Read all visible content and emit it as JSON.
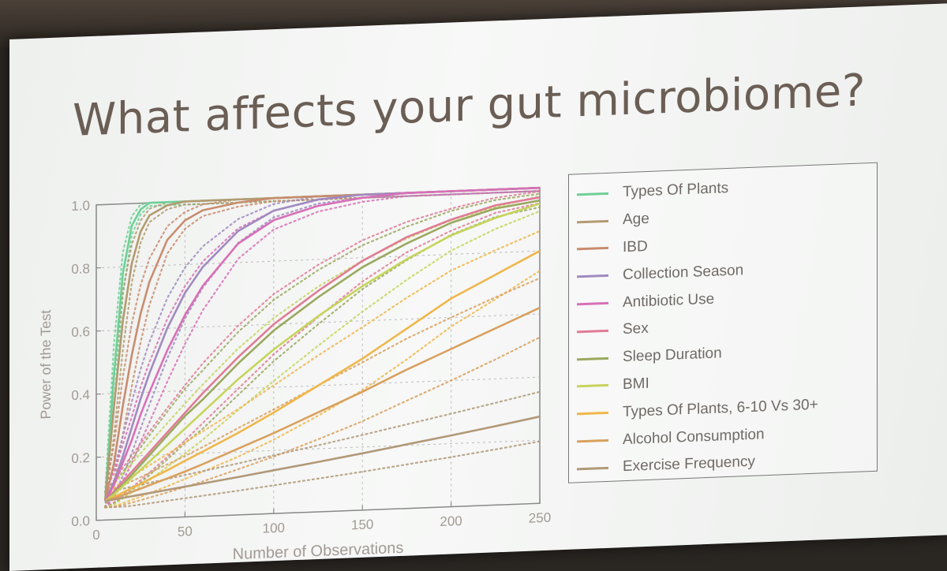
{
  "slide": {
    "title": "What affects your gut microbiome?"
  },
  "chart_data": {
    "type": "line",
    "xlabel": "Number of Observations",
    "ylabel": "Power of the Test",
    "xlim": [
      0,
      250
    ],
    "ylim": [
      0.0,
      1.0
    ],
    "xticks": [
      "0",
      "50",
      "100",
      "150",
      "200",
      "250"
    ],
    "yticks": [
      "0.0",
      "0.2",
      "0.4",
      "0.6",
      "0.8",
      "1.0"
    ],
    "grid": true,
    "legend_position": "right",
    "x": [
      5,
      10,
      15,
      20,
      25,
      30,
      40,
      50,
      60,
      80,
      100,
      125,
      150,
      175,
      200,
      225,
      250
    ],
    "series": [
      {
        "name": "Types Of Plants",
        "color": "#6fcf97",
        "values": [
          0.06,
          0.46,
          0.78,
          0.93,
          0.98,
          1.0,
          1.0,
          1.0,
          1.0,
          1.0,
          1.0,
          1.0,
          1.0,
          1.0,
          1.0,
          1.0,
          1.0
        ]
      },
      {
        "name": "Age",
        "color": "#b39a70",
        "values": [
          0.06,
          0.36,
          0.63,
          0.81,
          0.91,
          0.96,
          0.99,
          1.0,
          1.0,
          1.0,
          1.0,
          1.0,
          1.0,
          1.0,
          1.0,
          1.0,
          1.0
        ]
      },
      {
        "name": "IBD",
        "color": "#c98c6d",
        "values": [
          0.06,
          0.18,
          0.36,
          0.52,
          0.65,
          0.75,
          0.88,
          0.94,
          0.97,
          0.99,
          1.0,
          1.0,
          1.0,
          1.0,
          1.0,
          1.0,
          1.0
        ]
      },
      {
        "name": "Collection Season",
        "color": "#a08ac0",
        "values": [
          0.06,
          0.12,
          0.2,
          0.29,
          0.38,
          0.46,
          0.6,
          0.71,
          0.79,
          0.9,
          0.96,
          0.99,
          1.0,
          1.0,
          1.0,
          1.0,
          1.0
        ]
      },
      {
        "name": "Antibiotic Use",
        "color": "#d86fb7",
        "values": [
          0.06,
          0.11,
          0.18,
          0.25,
          0.33,
          0.4,
          0.53,
          0.64,
          0.73,
          0.86,
          0.93,
          0.97,
          0.99,
          1.0,
          1.0,
          1.0,
          1.0
        ]
      },
      {
        "name": "Sex",
        "color": "#e07b96",
        "values": [
          0.06,
          0.09,
          0.12,
          0.15,
          0.18,
          0.21,
          0.27,
          0.33,
          0.39,
          0.5,
          0.6,
          0.7,
          0.79,
          0.86,
          0.91,
          0.95,
          0.97
        ]
      },
      {
        "name": "Sleep Duration",
        "color": "#9aa85e",
        "values": [
          0.06,
          0.085,
          0.11,
          0.14,
          0.17,
          0.2,
          0.26,
          0.32,
          0.37,
          0.48,
          0.58,
          0.68,
          0.77,
          0.84,
          0.9,
          0.94,
          0.96
        ]
      },
      {
        "name": "BMI",
        "color": "#c6d45a",
        "values": [
          0.06,
          0.08,
          0.105,
          0.13,
          0.155,
          0.18,
          0.23,
          0.28,
          0.33,
          0.43,
          0.52,
          0.62,
          0.71,
          0.79,
          0.86,
          0.91,
          0.95
        ]
      },
      {
        "name": "Types Of Plants, 6-10 Vs 30+",
        "color": "#f0b64a",
        "values": [
          0.06,
          0.072,
          0.085,
          0.098,
          0.11,
          0.124,
          0.15,
          0.178,
          0.205,
          0.26,
          0.32,
          0.4,
          0.48,
          0.57,
          0.66,
          0.73,
          0.8
        ]
      },
      {
        "name": "Alcohol Consumption",
        "color": "#d9a05e",
        "values": [
          0.06,
          0.068,
          0.077,
          0.086,
          0.095,
          0.105,
          0.124,
          0.144,
          0.165,
          0.21,
          0.255,
          0.315,
          0.375,
          0.44,
          0.5,
          0.56,
          0.62
        ]
      },
      {
        "name": "Exercise Frequency",
        "color": "#b29878",
        "values": [
          0.06,
          0.064,
          0.068,
          0.072,
          0.076,
          0.08,
          0.088,
          0.096,
          0.104,
          0.12,
          0.137,
          0.158,
          0.18,
          0.203,
          0.226,
          0.25,
          0.275
        ]
      }
    ]
  }
}
